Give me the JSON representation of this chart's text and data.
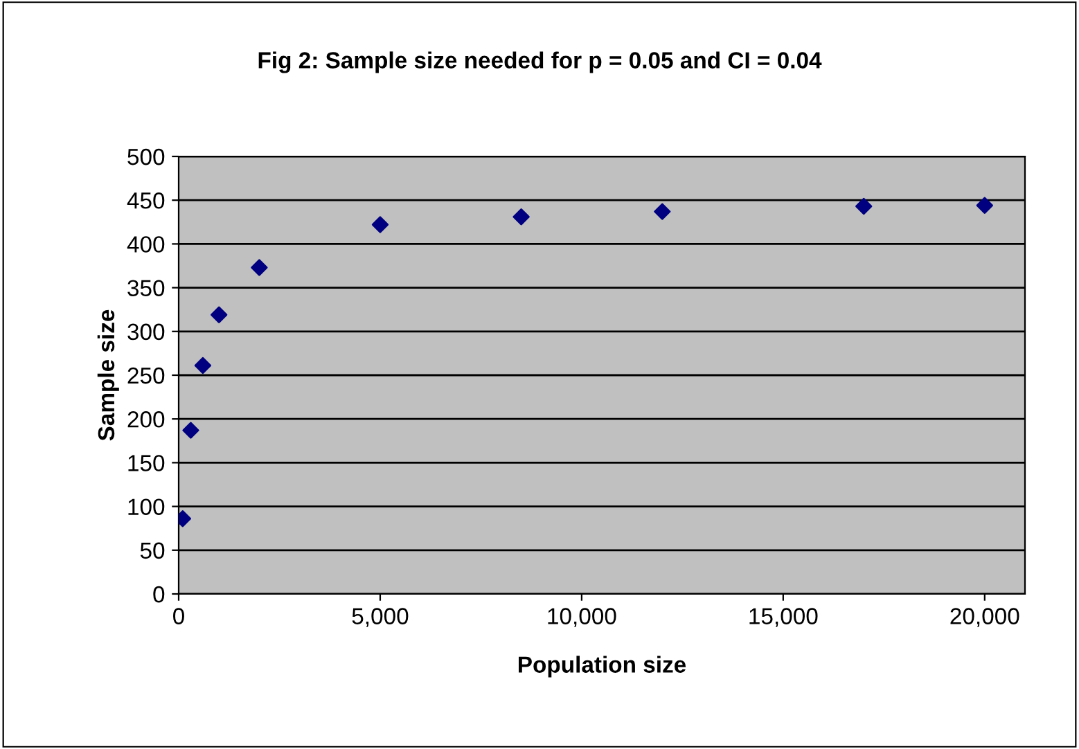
{
  "chart_data": {
    "type": "scatter",
    "title": "Fig 2: Sample size needed for p = 0.05 and CI = 0.04",
    "xlabel": "Population size",
    "ylabel": "Sample size",
    "x": [
      100,
      300,
      600,
      1000,
      2000,
      5000,
      8500,
      12000,
      17000,
      20000
    ],
    "series": [
      {
        "color": "#000080",
        "values": [
          86,
          187,
          261,
          319,
          373,
          422,
          431,
          437,
          443,
          444
        ]
      }
    ],
    "xlim": [
      0,
      21000
    ],
    "xticks": [
      0,
      {
        "value": 5000,
        "label": "5,000"
      },
      {
        "value": 10000,
        "label": "10,000"
      },
      {
        "value": 15000,
        "label": "15,000"
      },
      {
        "value": 20000,
        "label": "20,000"
      }
    ],
    "ylim": [
      0,
      500
    ],
    "yticks": [
      0,
      50,
      100,
      150,
      200,
      250,
      300,
      350,
      400,
      450,
      500
    ],
    "grid": "y",
    "marker": "diamond",
    "legend": false
  }
}
